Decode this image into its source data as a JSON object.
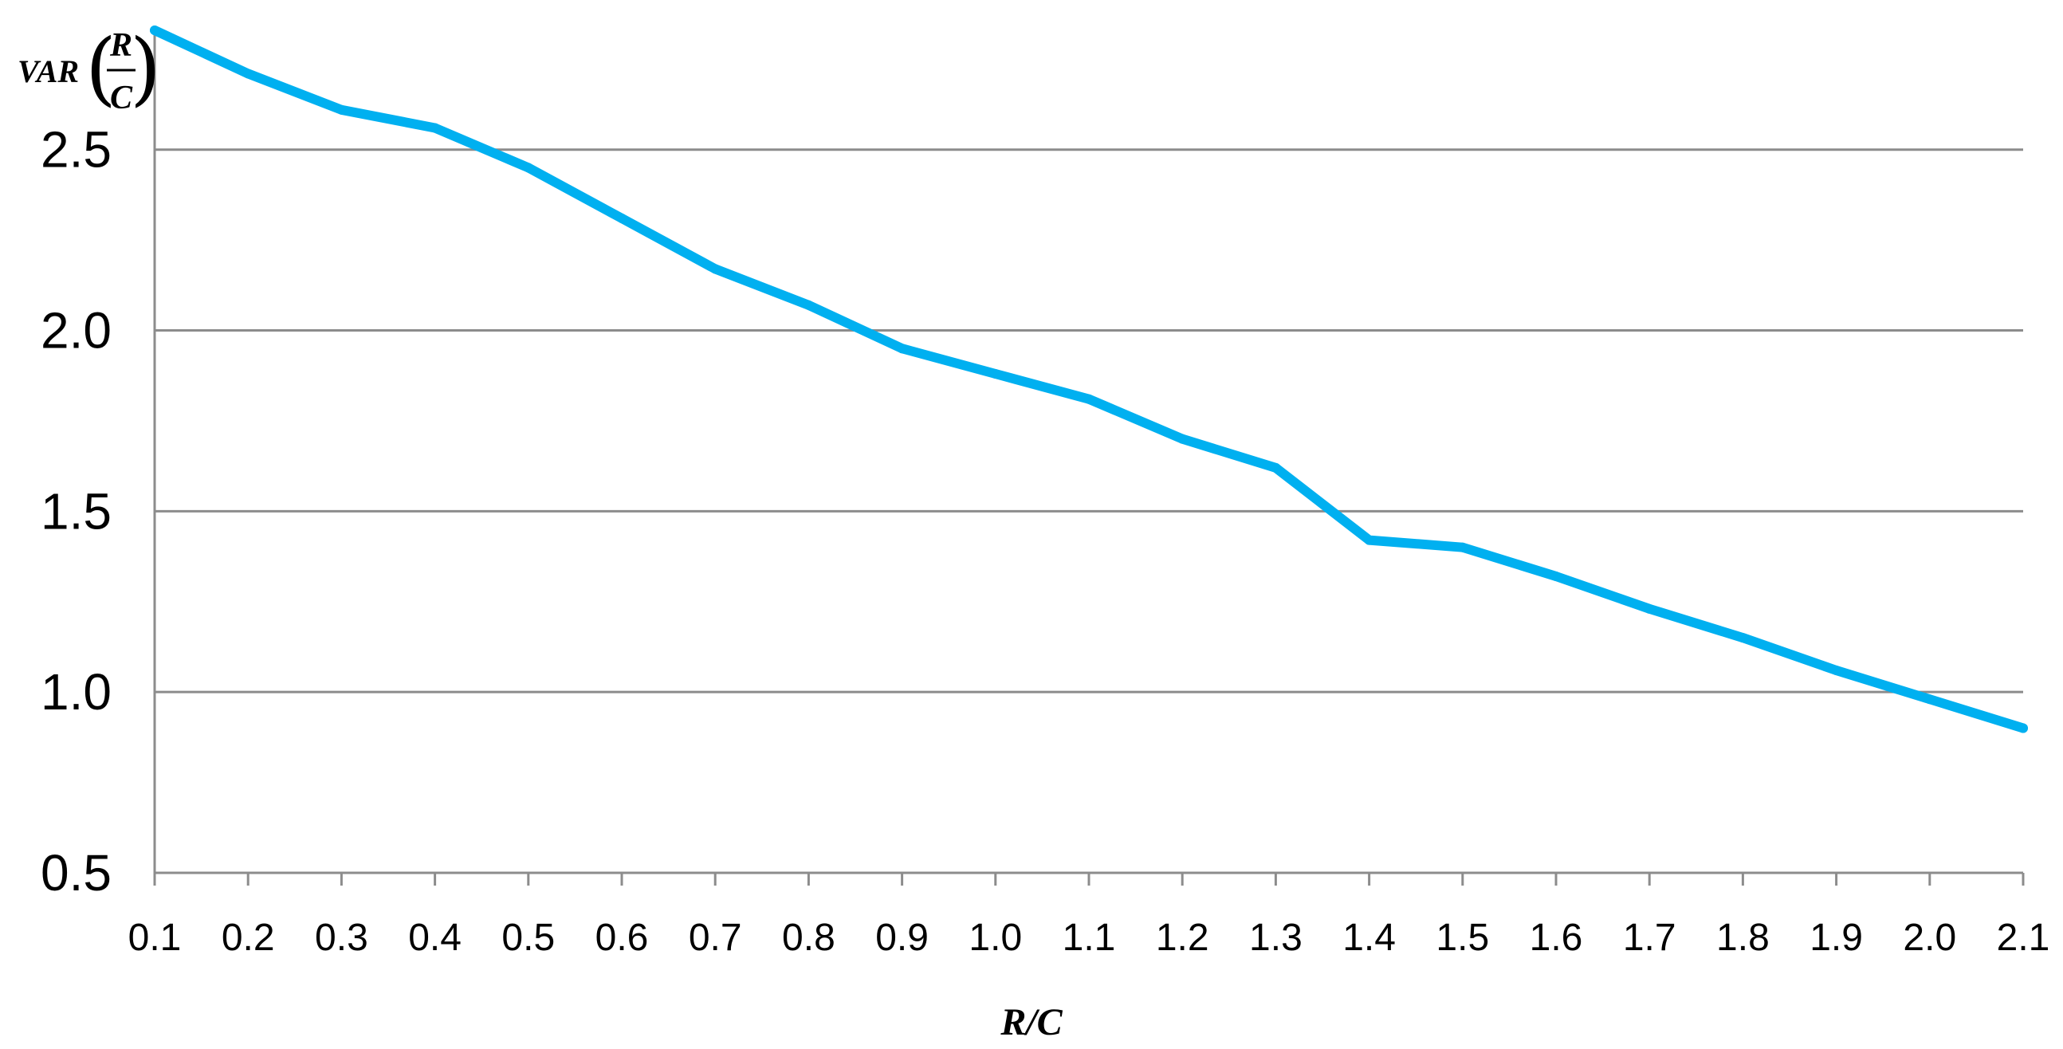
{
  "chart_data": {
    "type": "line",
    "x": [
      "0.1",
      "0.2",
      "0.3",
      "0.4",
      "0.5",
      "0.6",
      "0.7",
      "0.8",
      "0.9",
      "1.0",
      "1.1",
      "1.2",
      "1.3",
      "1.4",
      "1.5",
      "1.6",
      "1.7",
      "1.8",
      "1.9",
      "2.0",
      "2.1"
    ],
    "series": [
      {
        "values": [
          2.83,
          2.71,
          2.61,
          2.56,
          2.45,
          2.31,
          2.17,
          2.07,
          1.95,
          1.88,
          1.81,
          1.7,
          1.62,
          1.42,
          1.4,
          1.32,
          1.23,
          1.15,
          1.06,
          0.98,
          0.9
        ],
        "color": "#00b0f0"
      }
    ],
    "ylabel": {
      "prefix": "VAR",
      "numerator": "R",
      "denominator": "C"
    },
    "xlabel": "R/C",
    "y_ticks": [
      "0.5",
      "1.0",
      "1.5",
      "2.0",
      "2.5"
    ],
    "ylim": [
      0.5,
      2.83
    ],
    "grid": true
  }
}
